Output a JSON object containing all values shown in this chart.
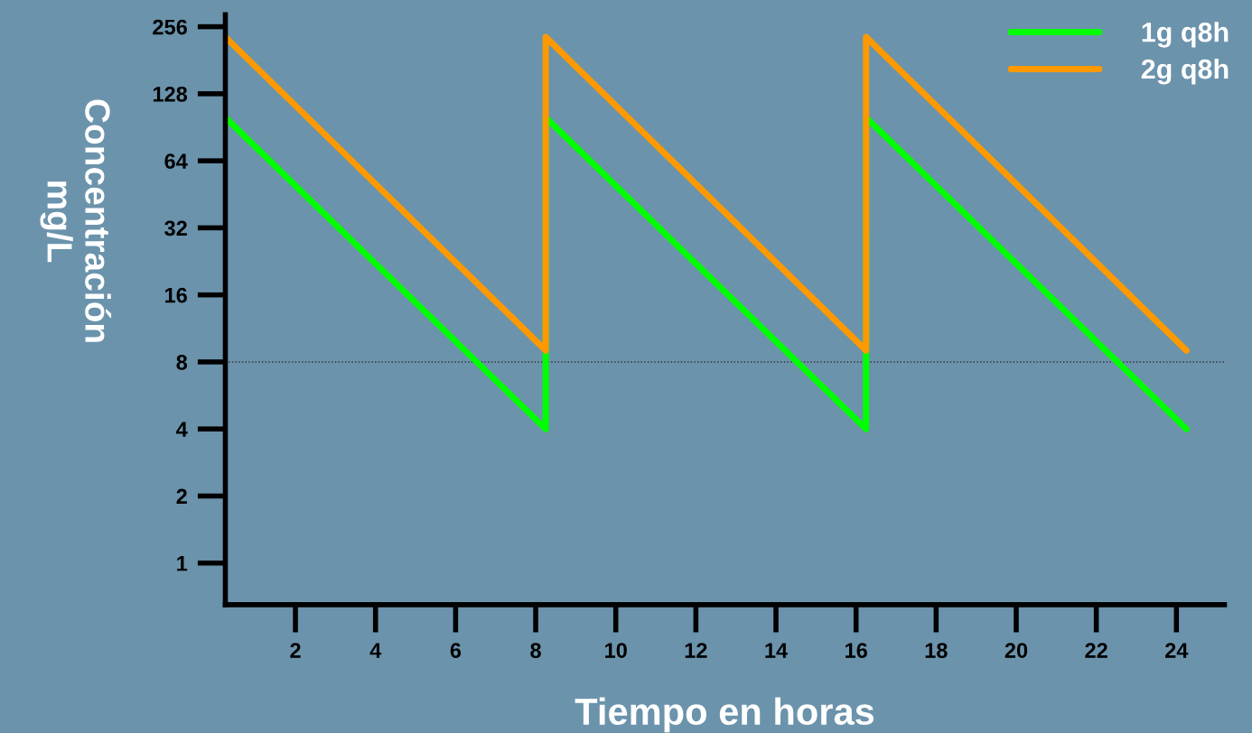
{
  "chart_data": {
    "type": "line",
    "xlabel": "Tiempo en horas",
    "ylabel": "Concentración\nmg/L",
    "x": [
      0.25,
      8.25,
      8.25,
      16.25,
      16.25,
      24.25
    ],
    "series": [
      {
        "name": "1g q8h",
        "color": "#00ff00",
        "values": [
          100,
          4,
          100,
          4,
          100,
          4
        ]
      },
      {
        "name": "2g q8h",
        "color": "#ff9900",
        "values": [
          230,
          9,
          230,
          9,
          230,
          9
        ]
      }
    ],
    "log": "y",
    "xlim": [
      0.25,
      25.2
    ],
    "xticks": [
      2,
      4,
      6,
      8,
      10,
      12,
      14,
      16,
      18,
      20,
      22,
      24
    ],
    "ylim": [
      0.65,
      290
    ],
    "yticks": [
      1,
      2,
      4,
      8,
      16,
      32,
      64,
      128,
      256
    ],
    "ref_lines": [
      {
        "axis": "y",
        "value": 8,
        "color": "#333333",
        "line_style": "dotted"
      }
    ],
    "grid": false,
    "legend": "top right",
    "line_style": "solid",
    "marker": "none"
  }
}
